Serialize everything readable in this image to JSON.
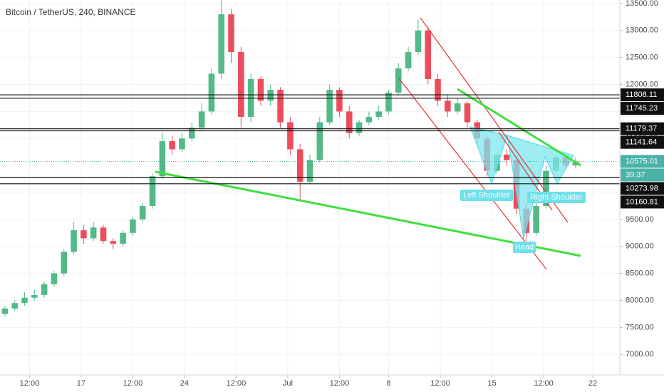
{
  "chart_data": {
    "type": "candlestick",
    "title": "Bitcoin / TetherUS, 240, BINANCE",
    "x": [
      2,
      6,
      10,
      14,
      18,
      22,
      26,
      30,
      34,
      38,
      42,
      46,
      50,
      54,
      58,
      62,
      66,
      70,
      74,
      78,
      82,
      86,
      90,
      94,
      98,
      102,
      106,
      110,
      114,
      118,
      122,
      126,
      130,
      134,
      138,
      142,
      146,
      150,
      154,
      158,
      162,
      166,
      170,
      174,
      178,
      182,
      186,
      190,
      194,
      198,
      202,
      206,
      210,
      214,
      218,
      222,
      226,
      230,
      234
    ],
    "open": [
      7750,
      7850,
      7950,
      8050,
      8100,
      8300,
      8500,
      8900,
      9300,
      9150,
      9350,
      9100,
      9050,
      9250,
      9500,
      9750,
      10300,
      10950,
      10800,
      11000,
      11200,
      11500,
      12200,
      13300,
      12600,
      11400,
      12100,
      11700,
      11900,
      11300,
      10800,
      10200,
      10600,
      11300,
      11900,
      11500,
      11100,
      11300,
      11400,
      11500,
      11850,
      12300,
      12600,
      13000,
      12100,
      11700,
      11500,
      11650,
      11300,
      11000,
      10400,
      10700,
      10600,
      9700,
      9250,
      9750,
      10400,
      10650,
      10500
    ],
    "high": [
      7900,
      8000,
      8150,
      8200,
      8350,
      8550,
      8950,
      9450,
      9400,
      9450,
      9400,
      9150,
      9300,
      9550,
      9800,
      10350,
      11100,
      11050,
      11100,
      11300,
      11650,
      12300,
      13600,
      13400,
      12700,
      12200,
      12150,
      12000,
      11950,
      11400,
      10900,
      10700,
      11400,
      12000,
      11950,
      11600,
      11350,
      11500,
      11600,
      11900,
      12400,
      12700,
      13200,
      13050,
      12200,
      11800,
      11750,
      11700,
      11350,
      11050,
      10750,
      10800,
      10650,
      9800,
      9800,
      10500,
      10700,
      10700,
      10650
    ],
    "low": [
      7700,
      7800,
      7900,
      8000,
      8050,
      8250,
      8450,
      8850,
      9050,
      9100,
      9050,
      8950,
      9000,
      9200,
      9450,
      9700,
      10250,
      10700,
      10750,
      10950,
      11150,
      11450,
      12100,
      12400,
      11200,
      11300,
      11600,
      11600,
      11200,
      10700,
      9850,
      10150,
      10550,
      11250,
      11400,
      11000,
      11050,
      11250,
      11350,
      11450,
      11800,
      12250,
      12550,
      12000,
      11600,
      11400,
      11450,
      11200,
      10900,
      10300,
      10350,
      10500,
      9600,
      9100,
      9200,
      9700,
      10350,
      10450,
      10450
    ],
    "close": [
      7850,
      7950,
      8050,
      8100,
      8300,
      8500,
      8900,
      9300,
      9150,
      9350,
      9100,
      9050,
      9250,
      9500,
      9750,
      10300,
      10950,
      10800,
      11000,
      11200,
      11500,
      12200,
      13300,
      12600,
      11400,
      12100,
      11700,
      11900,
      11300,
      10800,
      10200,
      10600,
      11300,
      11900,
      11500,
      11100,
      11300,
      11400,
      11500,
      11850,
      12300,
      12600,
      13000,
      12100,
      11700,
      11500,
      11650,
      11300,
      11000,
      10400,
      10700,
      10600,
      9700,
      9250,
      9750,
      10400,
      10650,
      10500,
      10575
    ],
    "up_color": "#53b987",
    "down_color": "#eb4d5c",
    "xlim": [
      0,
      252
    ],
    "xticks": [
      {
        "value": 12,
        "label": "12:00"
      },
      {
        "value": 33,
        "label": "17"
      },
      {
        "value": 54,
        "label": "12:00"
      },
      {
        "value": 75,
        "label": "24"
      },
      {
        "value": 96,
        "label": "12:00"
      },
      {
        "value": 117,
        "label": "Jul"
      },
      {
        "value": 138,
        "label": "12:00"
      },
      {
        "value": 158,
        "label": "8"
      },
      {
        "value": 179,
        "label": "12:00"
      },
      {
        "value": 200,
        "label": "15"
      },
      {
        "value": 221,
        "label": "12:00"
      },
      {
        "value": 241,
        "label": "22"
      }
    ],
    "ylim": [
      6620,
      13565
    ],
    "yticks": [
      {
        "value": 7000,
        "label": "7000.00"
      },
      {
        "value": 7500,
        "label": "7500.00"
      },
      {
        "value": 8000,
        "label": "8000.00"
      },
      {
        "value": 8500,
        "label": "8500.00"
      },
      {
        "value": 9000,
        "label": "9000.00"
      },
      {
        "value": 9500,
        "label": "9500.00"
      },
      {
        "value": 10000,
        "label": "10000.00"
      },
      {
        "value": 10500,
        "label": "10500.00"
      },
      {
        "value": 11000,
        "label": "11000.00"
      },
      {
        "value": 11500,
        "label": "11500.00"
      },
      {
        "value": 12000,
        "label": "12000.00"
      },
      {
        "value": 12500,
        "label": "12500.00"
      },
      {
        "value": 13000,
        "label": "13000.00"
      },
      {
        "value": 13500,
        "label": "13500.00"
      }
    ],
    "price_levels": [
      11808.11,
      11745.23,
      11179.37,
      11141.64,
      10273.98,
      10160.81
    ],
    "current_price": 10575.01,
    "countdown": "39:37",
    "annotations": [
      "Left Shoulder",
      "Head",
      "Right Shoulder"
    ]
  }
}
